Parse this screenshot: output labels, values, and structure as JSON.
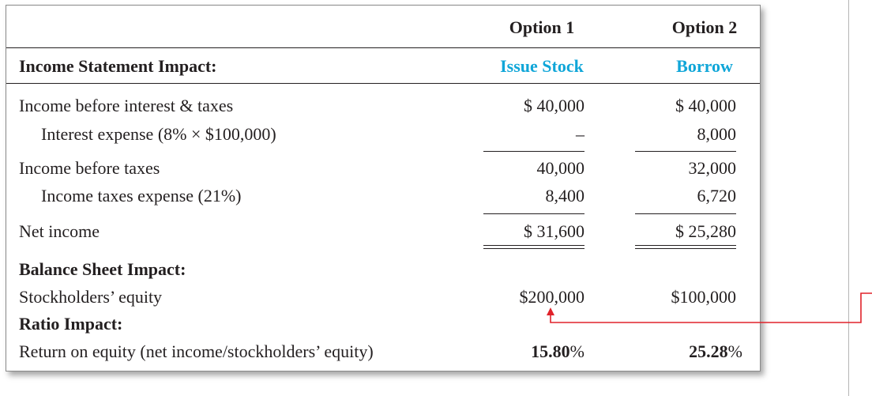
{
  "header": {
    "option1": "Option 1",
    "option2": "Option 2",
    "section": "Income Statement Impact:",
    "option1_sub": "Issue Stock",
    "option2_sub": "Borrow"
  },
  "rows": {
    "ibit_label": "Income before interest & taxes",
    "ibit_v1": "$  40,000",
    "ibit_v2": "$  40,000",
    "interest_label": "Interest expense (8% × $100,000)",
    "interest_v1": "–",
    "interest_v2": "8,000",
    "ibt_label": "Income before taxes",
    "ibt_v1": "40,000",
    "ibt_v2": "32,000",
    "tax_label": "Income taxes expense (21%)",
    "tax_v1": "8,400",
    "tax_v2": "6,720",
    "ni_label": "Net income",
    "ni_v1": "$   31,600",
    "ni_v2": "$  25,280"
  },
  "balance": {
    "heading": "Balance Sheet Impact:",
    "equity_label": "Stockholders’ equity",
    "equity_v1": "$200,000",
    "equity_v2": "$100,000"
  },
  "ratio": {
    "heading": "Ratio Impact:",
    "roe_label": "Return on equity (net income/stockholders’ equity)",
    "roe_v1_num": "15.80",
    "roe_v2_num": "25.28",
    "pct": "%"
  },
  "colors": {
    "accent": "#10a6d8",
    "arrow": "#e0222a",
    "text": "#231f20"
  }
}
